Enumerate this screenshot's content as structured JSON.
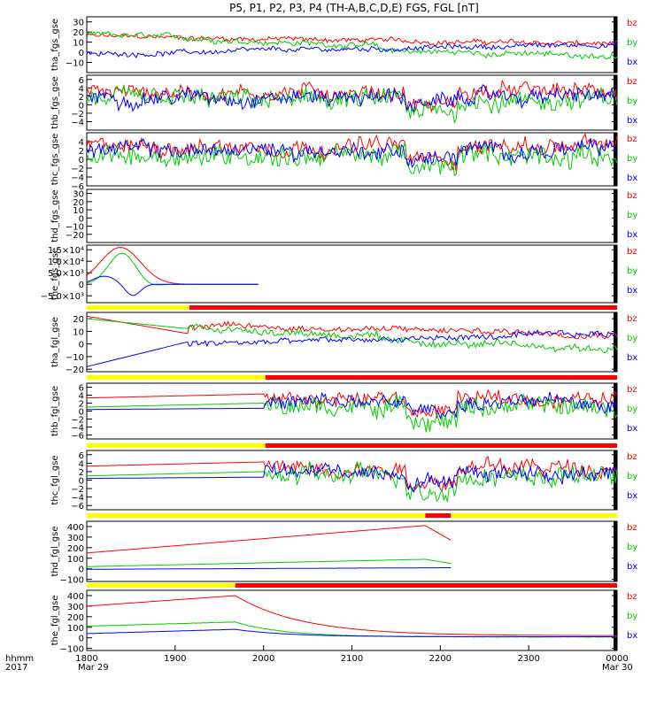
{
  "title": "P5, P1, P2, P3, P4 (TH-A,B,C,D,E) FGS, FGL [nT]",
  "colors": {
    "bz": "#ff0000",
    "by": "#00cc00",
    "bx": "#0000ff",
    "mode_slow": "#ffff00",
    "mode_fast": "#ff0000",
    "axis": "#000000"
  },
  "chart_data": {
    "type": "line",
    "x_axis": {
      "ticks": [
        "1800",
        "1900",
        "2000",
        "2100",
        "2200",
        "2300",
        "0000"
      ],
      "start_label": "hhmm",
      "start_year": "2017",
      "first_date": "Mar 29",
      "last_date": "Mar 30",
      "range_hours": [
        18,
        24
      ]
    },
    "legend": [
      "bz",
      "by",
      "bx"
    ],
    "panels": [
      {
        "ylabel": "tha_fgs_gse",
        "ylim": [
          -20,
          35
        ],
        "yticks": [
          "30",
          "20",
          "10",
          "0",
          "−10"
        ],
        "bar": null,
        "profile": "noisy_a"
      },
      {
        "ylabel": "thb_fgs_gse",
        "ylim": [
          -6,
          7
        ],
        "yticks": [
          "6",
          "4",
          "2",
          "0",
          "−2",
          "−4"
        ],
        "bar": null,
        "profile": "noisy_b"
      },
      {
        "ylabel": "thc_fgs_gse",
        "ylim": [
          -6,
          6
        ],
        "yticks": [
          "4",
          "2",
          "0",
          "−2",
          "−4",
          "−6"
        ],
        "bar": null,
        "profile": "noisy_c"
      },
      {
        "ylabel": "thd_fgs_gse",
        "ylim": [
          -30,
          35
        ],
        "yticks": [
          "30",
          "20",
          "10",
          "0",
          "−10",
          "−20"
        ],
        "bar": null,
        "profile": "empty"
      },
      {
        "ylabel": "the_fgs_gse",
        "ylim": [
          -8000,
          17000
        ],
        "yticks": [
          "1.5×10⁴",
          "1.0×10⁴",
          "5.0×10³",
          "0",
          "−5.0×10³"
        ],
        "bar": null,
        "profile": "pulse"
      },
      {
        "ylabel": "tha_fgl_gse",
        "ylim": [
          -22,
          25
        ],
        "yticks": [
          "20",
          "10",
          "0",
          "−10",
          "−20"
        ],
        "bar": {
          "switch_hour": 19.16,
          "segments": [
            "slow",
            "fast"
          ]
        },
        "profile": "noisy_a_ramp"
      },
      {
        "ylabel": "thb_fgl_gse",
        "ylim": [
          -7,
          7
        ],
        "yticks": [
          "6",
          "4",
          "2",
          "0",
          "−2",
          "−4",
          "−6"
        ],
        "bar": {
          "switch_hour": 20.02,
          "segments": [
            "slow",
            "fast"
          ]
        },
        "profile": "noisy_b_late"
      },
      {
        "ylabel": "thc_fgl_gse",
        "ylim": [
          -7,
          7
        ],
        "yticks": [
          "6",
          "4",
          "2",
          "0",
          "−2",
          "−4",
          "−6"
        ],
        "bar": {
          "switch_hour": 20.02,
          "segments": [
            "slow",
            "fast"
          ]
        },
        "profile": "noisy_c_late"
      },
      {
        "ylabel": "thd_fgl_gse",
        "ylim": [
          -120,
          450
        ],
        "yticks": [
          "400",
          "300",
          "200",
          "100",
          "0",
          "−100"
        ],
        "bar": {
          "switch_hour": 21.83,
          "end_hour": 22.12,
          "segments": [
            "slow",
            "fast",
            "slow"
          ]
        },
        "profile": "ramp_d"
      },
      {
        "ylabel": "the_fgl_gse",
        "ylim": [
          -120,
          450
        ],
        "yticks": [
          "400",
          "300",
          "200",
          "100",
          "0",
          "−100"
        ],
        "bar": {
          "switch_hour": 19.68,
          "segments": [
            "slow",
            "fast"
          ]
        },
        "profile": "decay_e"
      }
    ]
  }
}
